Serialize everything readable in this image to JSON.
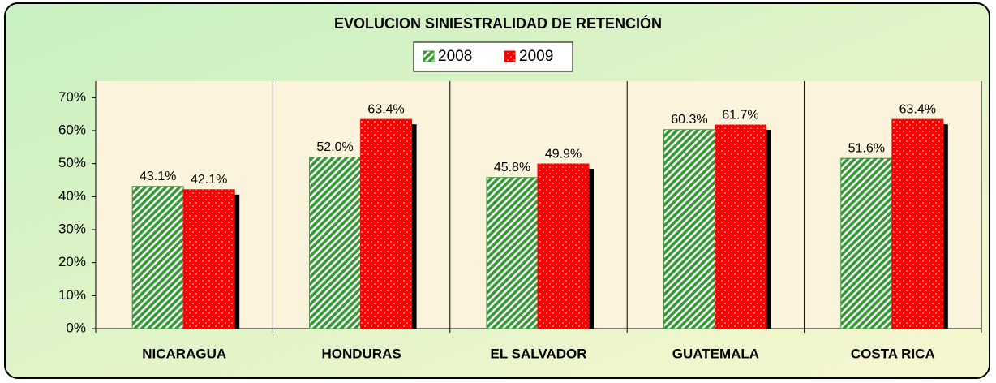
{
  "chart_data": {
    "type": "bar",
    "title": "EVOLUCION SINIESTRALIDAD DE RETENCIÓN",
    "categories": [
      "NICARAGUA",
      "HONDURAS",
      "EL SALVADOR",
      "GUATEMALA",
      "COSTA RICA"
    ],
    "series": [
      {
        "name": "2008",
        "color": "#339933",
        "values": [
          43.1,
          52.0,
          45.8,
          60.3,
          51.6
        ],
        "value_labels": [
          "43.1%",
          "52.0%",
          "45.8%",
          "60.3%",
          "51.6%"
        ]
      },
      {
        "name": "2009",
        "color": "#ff0000",
        "values": [
          42.1,
          63.4,
          49.9,
          61.7,
          63.4
        ],
        "value_labels": [
          "42.1%",
          "63.4%",
          "49.9%",
          "61.7%",
          "63.4%"
        ]
      }
    ],
    "ylim": [
      0,
      75
    ],
    "yticks": [
      {
        "value": 0,
        "label": "0%"
      },
      {
        "value": 10,
        "label": "10%"
      },
      {
        "value": 20,
        "label": "20%"
      },
      {
        "value": 30,
        "label": "30%"
      },
      {
        "value": 40,
        "label": "40%"
      },
      {
        "value": 50,
        "label": "50%"
      },
      {
        "value": 60,
        "label": "60%"
      },
      {
        "value": 70,
        "label": "70%"
      }
    ],
    "legend": "top"
  }
}
